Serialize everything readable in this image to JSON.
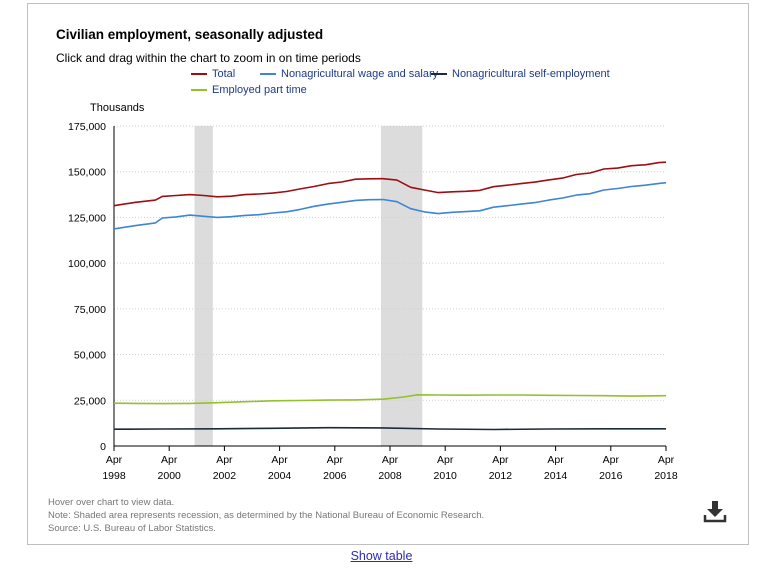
{
  "title": "Civilian employment, seasonally adjusted",
  "subtitle": "Click and drag within the chart to zoom in on time periods",
  "units": "Thousands",
  "notes": [
    "Hover over chart to view data.",
    "Note: Shaded area represents recession, as determined by the National Bureau of Economic Research.",
    "Source: U.S. Bureau of Labor Statistics."
  ],
  "show_table_label": "Show table",
  "download_icon": "download-icon",
  "colors": {
    "total": "#9b0f12",
    "wage_salary": "#3d85d6",
    "self_employment": "#1b2a3d",
    "part_time": "#93c02b",
    "recession": "#dcdcdc",
    "grid": "#cfcfcf"
  },
  "chart_data": {
    "type": "line",
    "title": "Civilian employment, seasonally adjusted",
    "ylabel": "Thousands",
    "xlabel": "",
    "ylim": [
      0,
      175000
    ],
    "y_ticks": [
      "0",
      "25,000",
      "50,000",
      "75,000",
      "100,000",
      "125,000",
      "150,000",
      "175,000"
    ],
    "y_tick_values": [
      0,
      25000,
      50000,
      75000,
      100000,
      125000,
      150000,
      175000
    ],
    "x_range": [
      "Apr 1998",
      "Apr 2018"
    ],
    "x_ticks": [
      {
        "month": "Apr",
        "year": "1998",
        "t": 1998.25
      },
      {
        "month": "Apr",
        "year": "2000",
        "t": 2000.25
      },
      {
        "month": "Apr",
        "year": "2002",
        "t": 2002.25
      },
      {
        "month": "Apr",
        "year": "2004",
        "t": 2004.25
      },
      {
        "month": "Apr",
        "year": "2006",
        "t": 2006.25
      },
      {
        "month": "Apr",
        "year": "2008",
        "t": 2008.25
      },
      {
        "month": "Apr",
        "year": "2010",
        "t": 2010.25
      },
      {
        "month": "Apr",
        "year": "2012",
        "t": 2012.25
      },
      {
        "month": "Apr",
        "year": "2014",
        "t": 2014.25
      },
      {
        "month": "Apr",
        "year": "2016",
        "t": 2016.25
      },
      {
        "month": "Apr",
        "year": "2018",
        "t": 2018.25
      }
    ],
    "recessions": [
      {
        "start": 2001.17,
        "end": 2001.83
      },
      {
        "start": 2007.92,
        "end": 2009.42
      }
    ],
    "grid": "horizontal dotted",
    "legend_position": "top",
    "series": [
      {
        "name": "Total",
        "color_key": "total",
        "x": [
          1998.25,
          1999.0,
          1999.75,
          2000.0,
          2000.5,
          2001.0,
          2001.5,
          2002.0,
          2002.5,
          2003.0,
          2003.5,
          2004.0,
          2004.5,
          2005.0,
          2005.5,
          2006.0,
          2006.5,
          2007.0,
          2007.5,
          2008.0,
          2008.5,
          2009.0,
          2009.5,
          2010.0,
          2010.5,
          2011.0,
          2011.5,
          2012.0,
          2012.5,
          2013.0,
          2013.5,
          2014.0,
          2014.5,
          2015.0,
          2015.5,
          2016.0,
          2016.5,
          2017.0,
          2017.5,
          2018.0,
          2018.25
        ],
        "y": [
          131400,
          133200,
          134500,
          136500,
          137000,
          137500,
          137000,
          136300,
          136600,
          137500,
          137800,
          138300,
          139200,
          140600,
          141900,
          143500,
          144400,
          145900,
          146100,
          146200,
          145400,
          141500,
          140000,
          138600,
          139000,
          139300,
          139800,
          141800,
          142600,
          143500,
          144300,
          145500,
          146500,
          148500,
          149300,
          151500,
          152000,
          153300,
          153800,
          155000,
          155200
        ]
      },
      {
        "name": "Nonagricultural wage and salary",
        "color_key": "wage_salary",
        "x": [
          1998.25,
          1999.0,
          1999.75,
          2000.0,
          2000.5,
          2001.0,
          2001.5,
          2002.0,
          2002.5,
          2003.0,
          2003.5,
          2004.0,
          2004.5,
          2005.0,
          2005.5,
          2006.0,
          2006.5,
          2007.0,
          2007.5,
          2008.0,
          2008.5,
          2009.0,
          2009.5,
          2010.0,
          2010.5,
          2011.0,
          2011.5,
          2012.0,
          2012.5,
          2013.0,
          2013.5,
          2014.0,
          2014.5,
          2015.0,
          2015.5,
          2016.0,
          2016.5,
          2017.0,
          2017.5,
          2018.0,
          2018.25
        ],
        "y": [
          118700,
          120500,
          122000,
          124700,
          125300,
          126300,
          125600,
          125000,
          125400,
          126100,
          126500,
          127400,
          128100,
          129400,
          131100,
          132300,
          133300,
          134300,
          134700,
          134800,
          133600,
          129800,
          128000,
          127100,
          127800,
          128200,
          128600,
          130600,
          131400,
          132300,
          133100,
          134500,
          135600,
          137200,
          138000,
          140000,
          140800,
          141900,
          142600,
          143600,
          144000
        ]
      },
      {
        "name": "Nonagricultural self-employment",
        "color_key": "self_employment",
        "x": [
          1998.25,
          2000.0,
          2002.0,
          2004.0,
          2006.0,
          2008.0,
          2010.0,
          2012.0,
          2014.0,
          2016.0,
          2018.25
        ],
        "y": [
          9200,
          9300,
          9400,
          9700,
          10000,
          9900,
          9300,
          9000,
          9300,
          9400,
          9400
        ]
      },
      {
        "name": "Employed part time",
        "color_key": "part_time",
        "x": [
          1998.25,
          1999.0,
          2000.0,
          2001.0,
          2002.0,
          2003.0,
          2004.0,
          2005.0,
          2006.0,
          2007.0,
          2008.0,
          2008.75,
          2009.25,
          2010.0,
          2011.0,
          2012.0,
          2013.0,
          2014.0,
          2015.0,
          2016.0,
          2017.0,
          2018.25
        ],
        "y": [
          23400,
          23300,
          23200,
          23300,
          23700,
          24200,
          24700,
          24900,
          25100,
          25200,
          25600,
          26800,
          28000,
          27900,
          27800,
          27900,
          27900,
          27700,
          27600,
          27500,
          27300,
          27500
        ]
      }
    ]
  }
}
